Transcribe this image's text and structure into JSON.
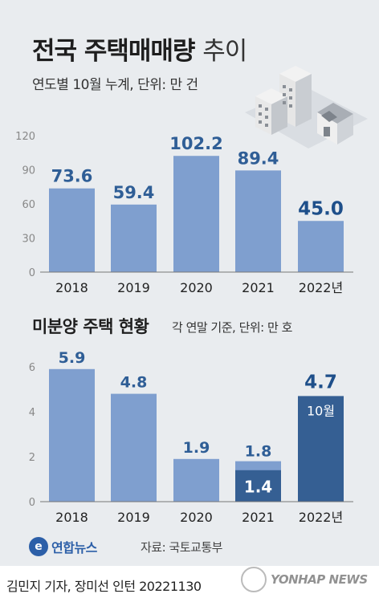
{
  "header": {
    "title_bold": "전국 주택매매량",
    "title_light": "추이",
    "subtitle": "연도별 10월 누계, 단위: 만 건"
  },
  "colors": {
    "bar": "#7f9fcf",
    "bar_highlight": "#355f93",
    "label": "#2f5e96",
    "label_highlight": "#1e4f8a",
    "axis": "#777777",
    "background": "#e9ecef"
  },
  "section2": {
    "title": "미분양 주택 현황",
    "subtitle": "각 연말 기준, 단위: 만 호"
  },
  "footer": {
    "logo_mark": "e",
    "logo_text": "연합뉴스",
    "source": "자료: 국토교통부",
    "credit": "김민지 기자, 장미선 인턴  20221130",
    "watermark": "YONHAP NEWS"
  },
  "chart_data": [
    {
      "type": "bar",
      "title": "전국 주택매매량 추이",
      "subtitle": "연도별 10월 누계, 단위: 만 건",
      "categories": [
        "2018",
        "2019",
        "2020",
        "2021",
        "2022년"
      ],
      "values": [
        73.6,
        59.4,
        102.2,
        89.4,
        45.0
      ],
      "labels": [
        "73.6",
        "59.4",
        "102.2",
        "89.4",
        "45.0"
      ],
      "highlight_index": 4,
      "ylim": [
        0,
        120
      ],
      "yticks": [
        0,
        30,
        60,
        90,
        120
      ],
      "grid": false
    },
    {
      "type": "bar",
      "title": "미분양 주택 현황",
      "subtitle": "각 연말 기준, 단위: 만 호",
      "categories": [
        "2018",
        "2019",
        "2020",
        "2021",
        "2022년"
      ],
      "values": [
        5.9,
        4.8,
        1.9,
        1.8,
        4.7
      ],
      "labels": [
        "5.9",
        "4.8",
        "1.9",
        "1.8",
        "4.7"
      ],
      "overlay": {
        "index": 3,
        "value": 1.4,
        "label": "1.4"
      },
      "highlight": {
        "index": 4,
        "note": "10월"
      },
      "ylim": [
        0,
        6
      ],
      "yticks": [
        0,
        2,
        4,
        6
      ],
      "grid": false
    }
  ]
}
